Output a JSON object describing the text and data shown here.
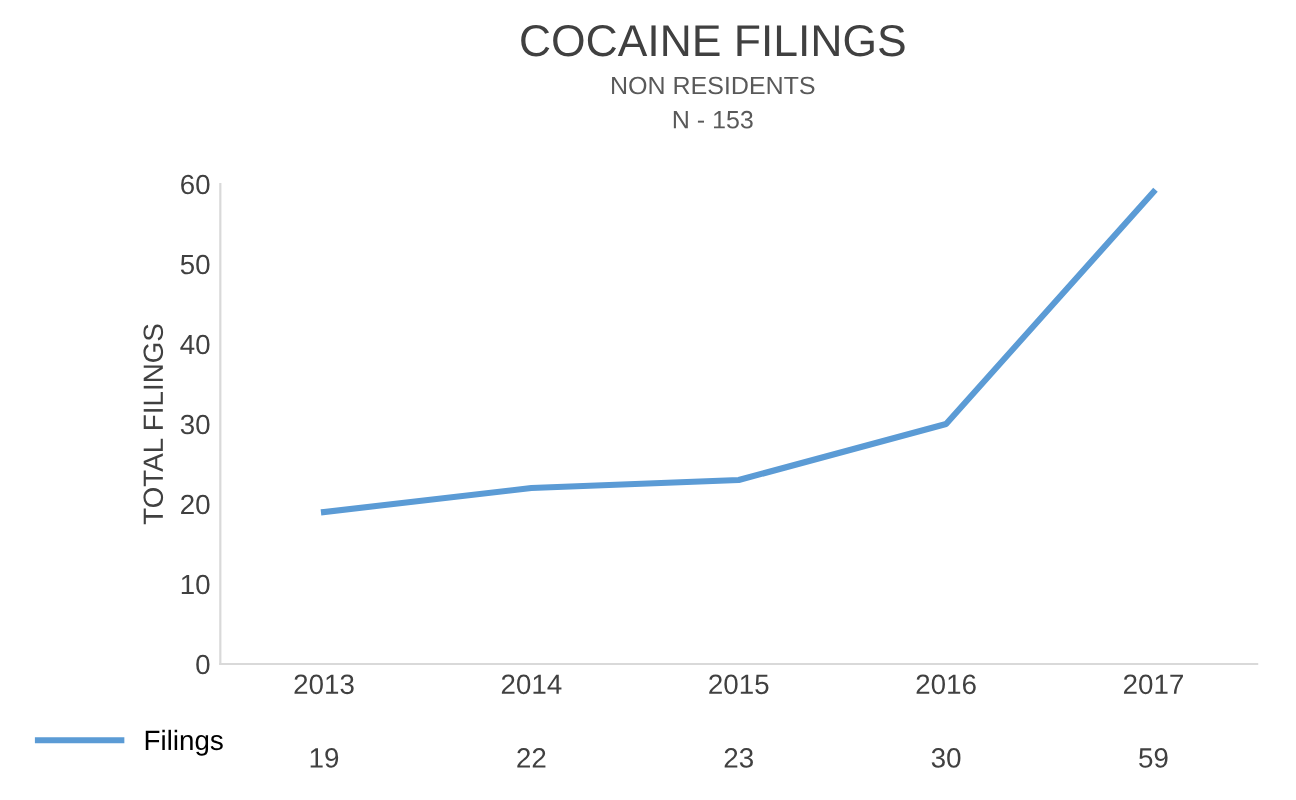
{
  "chart_data": {
    "type": "line",
    "title": "COCAINE FILINGS",
    "subtitle": "NON RESIDENTS\nN - 153",
    "ylabel": "TOTAL FILINGS",
    "categories": [
      "2013",
      "2014",
      "2015",
      "2016",
      "2017"
    ],
    "series": [
      {
        "name": "Filings",
        "color": "#5b9bd5",
        "values": [
          19,
          22,
          23,
          30,
          59
        ]
      }
    ],
    "ylim": [
      0,
      60
    ],
    "yticks": [
      0,
      10,
      20,
      30,
      40,
      50,
      60
    ],
    "grid": false,
    "legend": "bottom left",
    "data_labels": true
  }
}
